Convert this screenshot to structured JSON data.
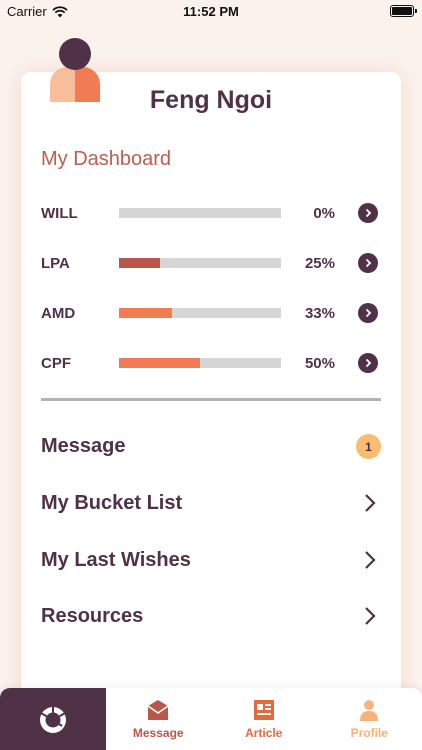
{
  "status_bar": {
    "carrier": "Carrier",
    "time": "11:52 PM"
  },
  "profile": {
    "name": "Feng Ngoi"
  },
  "dashboard": {
    "title": "My Dashboard",
    "items": [
      {
        "label": "WILL",
        "percent_text": "0%",
        "progress": 0,
        "color": "#d6d6d6"
      },
      {
        "label": "LPA",
        "percent_text": "25%",
        "progress": 0.25,
        "color": "#b9574a"
      },
      {
        "label": "AMD",
        "percent_text": "33%",
        "progress": 0.33,
        "color": "#f07b54"
      },
      {
        "label": "CPF",
        "percent_text": "50%",
        "progress": 0.5,
        "color": "#f07b54"
      }
    ]
  },
  "menu": {
    "message": {
      "label": "Message",
      "badge": "1"
    },
    "bucket_list": {
      "label": "My Bucket List"
    },
    "last_wishes": {
      "label": "My Last Wishes"
    },
    "resources": {
      "label": "Resources"
    }
  },
  "tabs": {
    "message": {
      "label": "Message"
    },
    "article": {
      "label": "Article"
    },
    "profile": {
      "label": "Profile"
    }
  },
  "colors": {
    "primary": "#4f3148",
    "accent": "#b9604e",
    "orange": "#f07b54",
    "badge": "#f8bd72"
  }
}
